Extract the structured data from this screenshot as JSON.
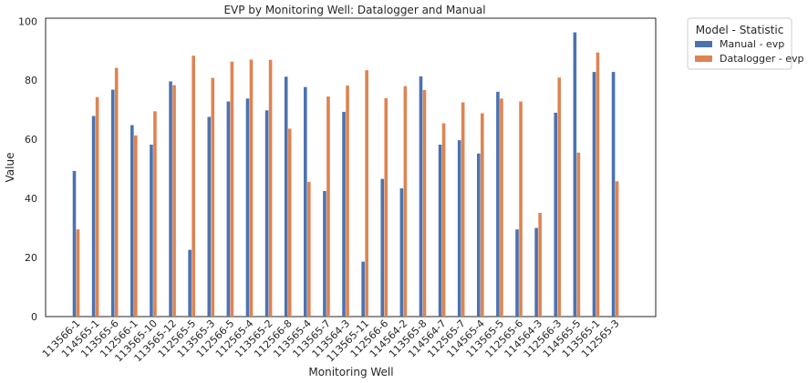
{
  "chart_data": {
    "type": "bar",
    "title": "EVP by Monitoring Well: Datalogger and Manual",
    "xlabel": "Monitoring Well",
    "ylabel": "Value",
    "ylim": [
      0,
      101
    ],
    "yticks": [
      0,
      20,
      40,
      60,
      80,
      100
    ],
    "grid": false,
    "legend_title": "Model - Statistic",
    "legend_placement": "outside-top-right",
    "categories": [
      "113566-1",
      "114565-1",
      "113565-6",
      "112566-1",
      "113565-10",
      "113565-12",
      "112565-5",
      "113565-3",
      "112566-5",
      "112565-4",
      "113565-2",
      "112566-8",
      "113565-4",
      "113565-7",
      "113564-3",
      "113565-11",
      "112566-6",
      "114564-2",
      "113565-8",
      "114564-7",
      "112565-7",
      "114565-4",
      "113565-5",
      "112565-6",
      "114564-3",
      "112566-3",
      "114565-5",
      "113565-1",
      "112565-3"
    ],
    "series": [
      {
        "name": "Manual - evp",
        "color": "#4c72b0",
        "values": [
          49.3,
          67.9,
          76.8,
          64.8,
          58.2,
          79.6,
          22.6,
          67.6,
          72.8,
          73.8,
          69.8,
          81.2,
          77.7,
          42.5,
          69.3,
          18.6,
          46.6,
          43.4,
          81.3,
          58.2,
          59.7,
          55.2,
          76.1,
          29.5,
          30.0,
          69.0,
          96.2,
          82.8,
          82.8
        ]
      },
      {
        "name": "Datalogger - evp",
        "color": "#dd8452",
        "values": [
          29.5,
          74.3,
          84.2,
          61.3,
          69.5,
          78.3,
          88.3,
          80.8,
          86.3,
          87.0,
          86.9,
          63.6,
          45.6,
          74.5,
          78.2,
          83.4,
          73.9,
          78.0,
          76.7,
          65.4,
          72.5,
          68.8,
          73.8,
          72.8,
          35.1,
          80.9,
          55.5,
          89.4,
          45.8
        ]
      }
    ]
  }
}
